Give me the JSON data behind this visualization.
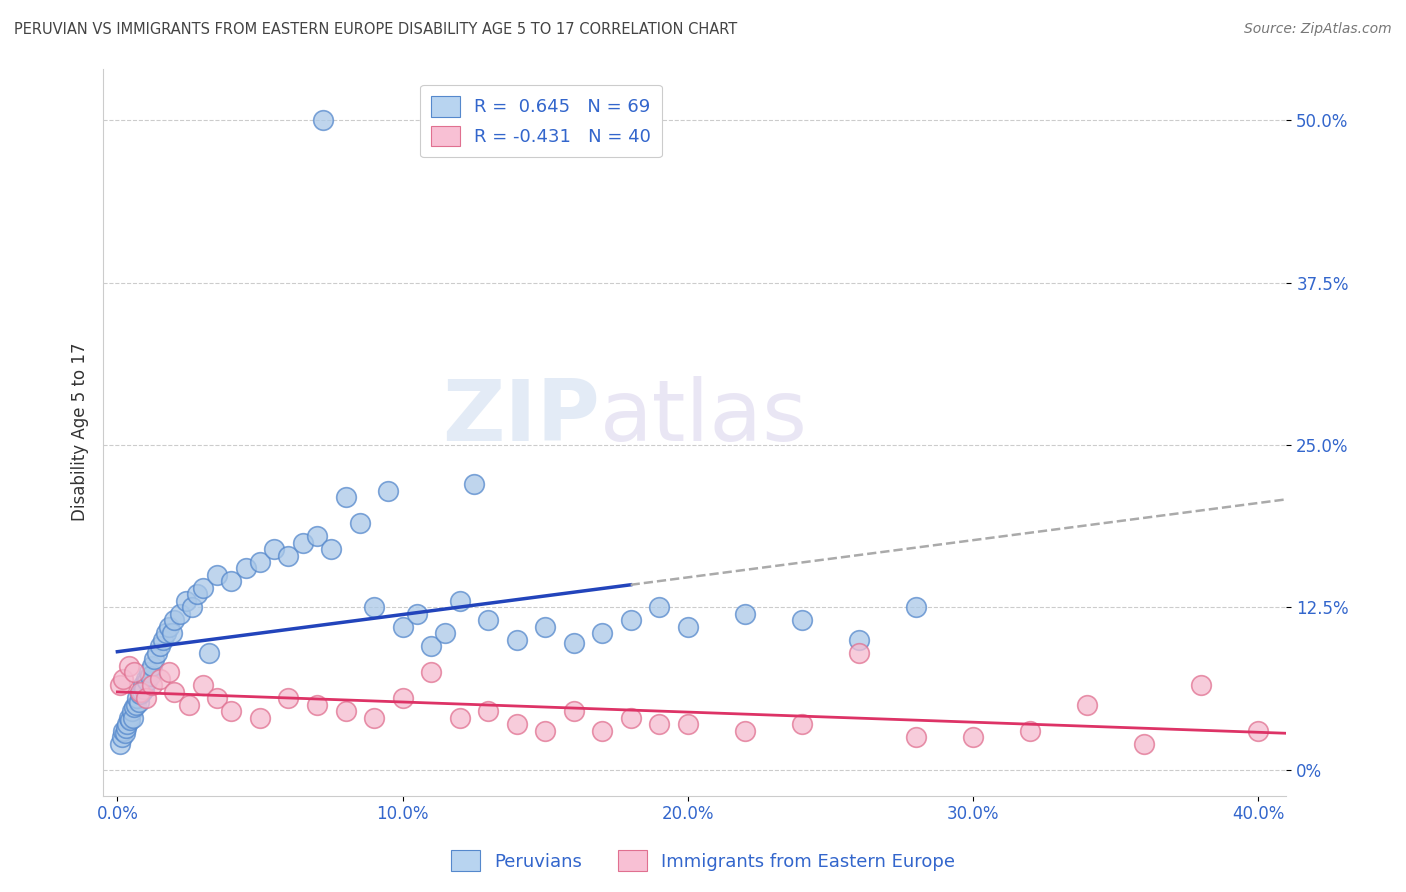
{
  "title": "PERUVIAN VS IMMIGRANTS FROM EASTERN EUROPE DISABILITY AGE 5 TO 17 CORRELATION CHART",
  "source": "Source: ZipAtlas.com",
  "xlabel_tick_vals": [
    0.0,
    10.0,
    20.0,
    30.0,
    40.0
  ],
  "ylabel": "Disability Age 5 to 17",
  "ylabel_tick_vals": [
    0.0,
    12.5,
    25.0,
    37.5,
    50.0
  ],
  "ylabel_tick_labels": [
    "0%",
    "12.5%",
    "25.0%",
    "37.5%",
    "50.0%"
  ],
  "xlim": [
    -0.5,
    41.0
  ],
  "ylim": [
    -2.0,
    54.0
  ],
  "blue_R": 0.645,
  "blue_N": 69,
  "pink_R": -0.431,
  "pink_N": 40,
  "blue_color": "#aac8e8",
  "blue_edge": "#5588cc",
  "pink_color": "#f5bbd0",
  "pink_edge": "#e07090",
  "blue_line_color": "#2244bb",
  "pink_line_color": "#dd3366",
  "legend_blue_fill": "#b8d4f0",
  "legend_pink_fill": "#f8c0d4",
  "legend_text_color": "#3366cc",
  "watermark_zip": "ZIP",
  "watermark_atlas": "atlas",
  "background_color": "#ffffff",
  "grid_color": "#cccccc",
  "title_color": "#444444",
  "blue_x": [
    0.1,
    0.15,
    0.2,
    0.25,
    0.3,
    0.35,
    0.4,
    0.45,
    0.5,
    0.55,
    0.6,
    0.65,
    0.7,
    0.75,
    0.8,
    0.85,
    0.9,
    0.95,
    1.0,
    1.05,
    1.1,
    1.15,
    1.2,
    1.3,
    1.4,
    1.5,
    1.6,
    1.7,
    1.8,
    1.9,
    2.0,
    2.2,
    2.4,
    2.6,
    2.8,
    3.0,
    3.2,
    3.5,
    4.0,
    4.5,
    5.0,
    5.5,
    6.0,
    6.5,
    7.0,
    7.5,
    8.0,
    8.5,
    9.0,
    9.5,
    10.0,
    10.5,
    11.0,
    11.5,
    12.0,
    12.5,
    13.0,
    14.0,
    15.0,
    16.0,
    17.0,
    18.0,
    19.0,
    20.0,
    22.0,
    24.0,
    26.0,
    28.0,
    7.2
  ],
  "blue_y": [
    2.0,
    2.5,
    3.0,
    2.8,
    3.2,
    3.5,
    4.0,
    3.8,
    4.5,
    4.0,
    4.8,
    5.0,
    5.5,
    5.2,
    5.8,
    6.0,
    6.5,
    6.2,
    7.0,
    6.8,
    7.5,
    7.2,
    8.0,
    8.5,
    9.0,
    9.5,
    10.0,
    10.5,
    11.0,
    10.5,
    11.5,
    12.0,
    13.0,
    12.5,
    13.5,
    14.0,
    9.0,
    15.0,
    14.5,
    15.5,
    16.0,
    17.0,
    16.5,
    17.5,
    18.0,
    17.0,
    21.0,
    19.0,
    12.5,
    21.5,
    11.0,
    12.0,
    9.5,
    10.5,
    13.0,
    22.0,
    11.5,
    10.0,
    11.0,
    9.8,
    10.5,
    11.5,
    12.5,
    11.0,
    12.0,
    11.5,
    10.0,
    12.5,
    50.0
  ],
  "pink_x": [
    0.1,
    0.2,
    0.4,
    0.6,
    0.8,
    1.0,
    1.2,
    1.5,
    1.8,
    2.0,
    2.5,
    3.0,
    3.5,
    4.0,
    5.0,
    6.0,
    7.0,
    8.0,
    9.0,
    10.0,
    11.0,
    12.0,
    13.0,
    14.0,
    15.0,
    16.0,
    17.0,
    18.0,
    19.0,
    20.0,
    22.0,
    24.0,
    26.0,
    28.0,
    30.0,
    32.0,
    34.0,
    36.0,
    38.0,
    40.0
  ],
  "pink_y": [
    6.5,
    7.0,
    8.0,
    7.5,
    6.0,
    5.5,
    6.5,
    7.0,
    7.5,
    6.0,
    5.0,
    6.5,
    5.5,
    4.5,
    4.0,
    5.5,
    5.0,
    4.5,
    4.0,
    5.5,
    7.5,
    4.0,
    4.5,
    3.5,
    3.0,
    4.5,
    3.0,
    4.0,
    3.5,
    3.5,
    3.0,
    3.5,
    9.0,
    2.5,
    2.5,
    3.0,
    5.0,
    2.0,
    6.5,
    3.0
  ]
}
